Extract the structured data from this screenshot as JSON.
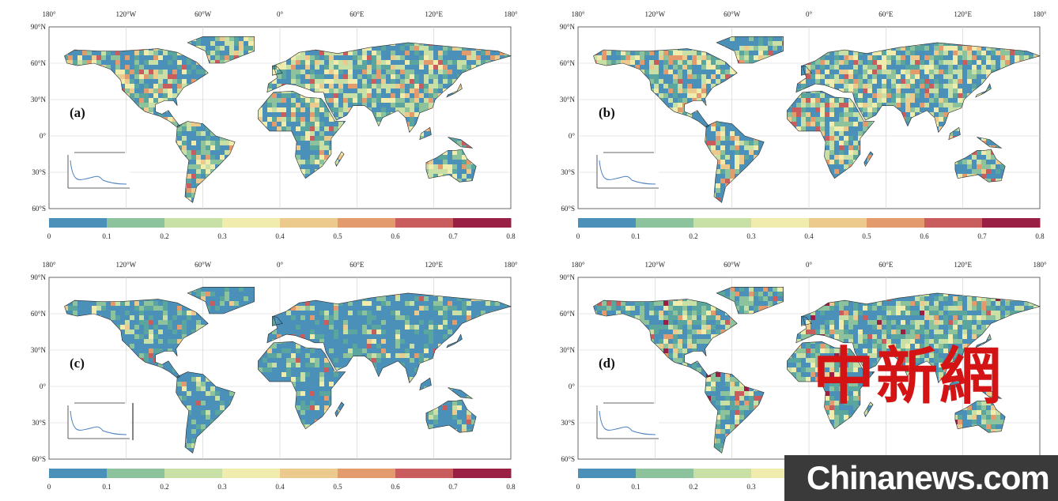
{
  "colorbar": {
    "ticks": [
      "0",
      "0.1",
      "0.2",
      "0.3",
      "0.4",
      "0.5",
      "0.6",
      "0.7",
      "0.8"
    ],
    "colors": [
      "#4a90b8",
      "#5aa59e",
      "#8cc39c",
      "#c8e0a6",
      "#f0ecae",
      "#ecc98d",
      "#e39a6c",
      "#c95d5e",
      "#9a1f45"
    ]
  },
  "axes": {
    "top_labels": [
      "180°",
      "120°W",
      "60°W",
      "0°",
      "60°E",
      "120°E",
      "180°"
    ],
    "left_labels": [
      "90°N",
      "60°N",
      "30°N",
      "0°",
      "30°S",
      "60°S"
    ]
  },
  "panels": [
    {
      "label": "(a)"
    },
    {
      "label": "(b)"
    },
    {
      "label": "(c)"
    },
    {
      "label": "(d)"
    }
  ],
  "watermark": {
    "chinese": "中新網",
    "site": "Chinanews.com",
    "color": "#d41414"
  }
}
